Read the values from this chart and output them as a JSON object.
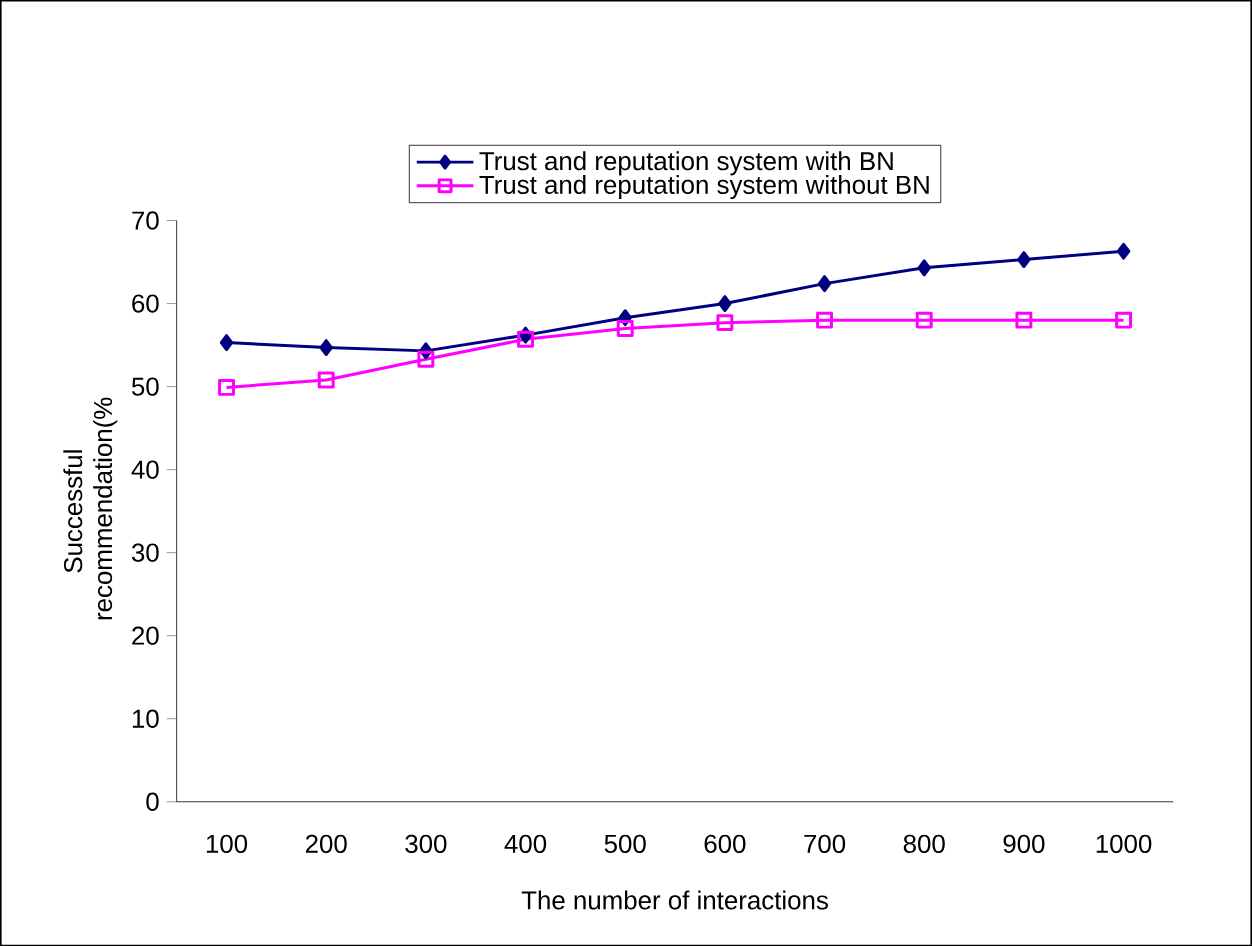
{
  "chart_data": {
    "type": "line",
    "xlabel": "The number of interactions",
    "ylabel": "Successful recommendation(%",
    "categories": [
      "100",
      "200",
      "300",
      "400",
      "500",
      "600",
      "700",
      "800",
      "900",
      "1000"
    ],
    "series": [
      {
        "name": "Trust and reputation system with BN",
        "color": "#000080",
        "marker": "diamond",
        "values": [
          55.3,
          54.7,
          54.3,
          56.2,
          58.3,
          60,
          62.4,
          64.3,
          65.3,
          66.3
        ]
      },
      {
        "name": "Trust and reputation system without BN",
        "color": "#ff00ff",
        "marker": "square",
        "values": [
          49.9,
          50.8,
          53.3,
          55.7,
          57,
          57.7,
          58,
          58,
          58,
          58
        ]
      }
    ],
    "ylim": [
      0,
      70
    ],
    "yticks": [
      0,
      10,
      20,
      30,
      40,
      50,
      60,
      70
    ],
    "grid": false,
    "legend": "top",
    "line_style": "solid"
  }
}
